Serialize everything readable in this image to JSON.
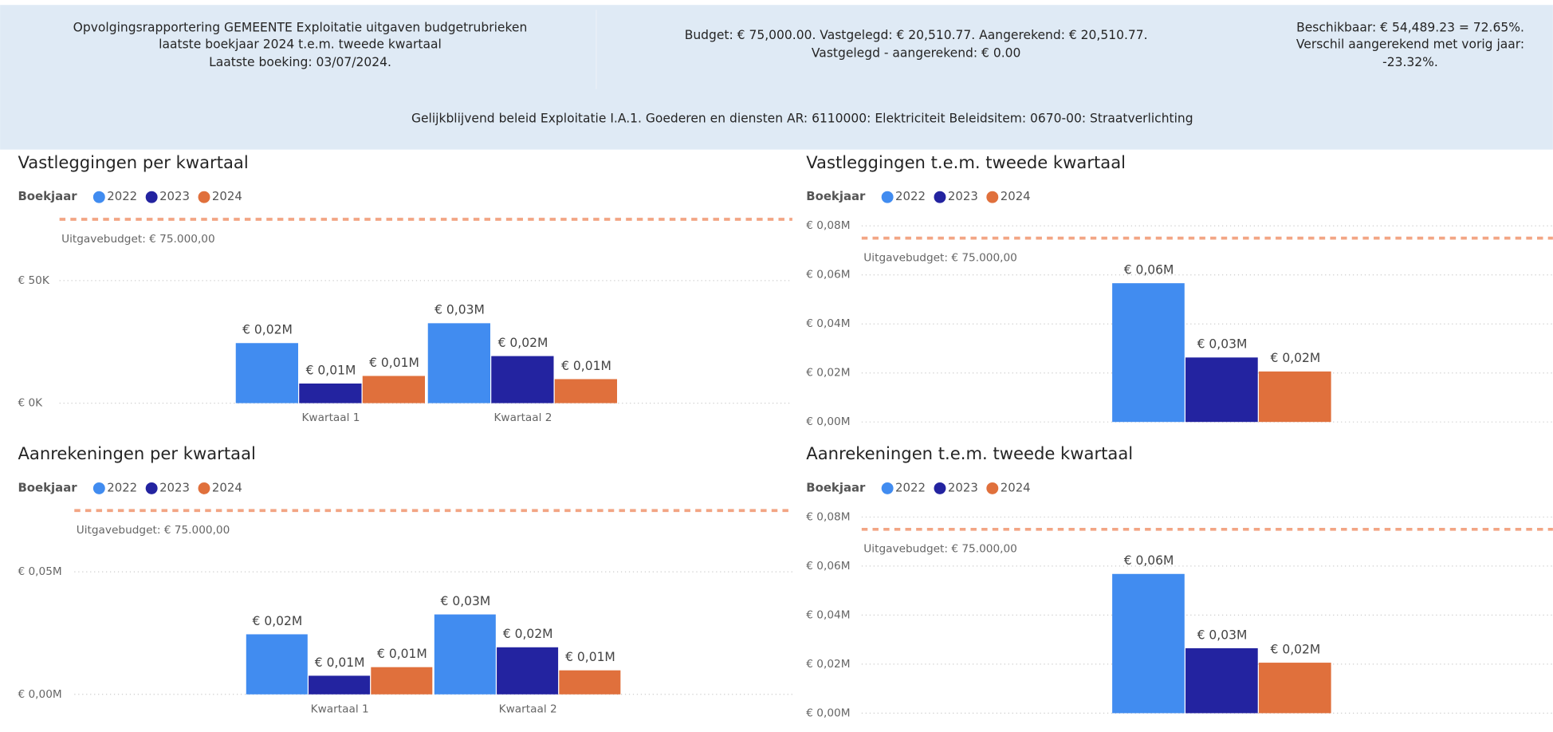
{
  "header": {
    "blocks": [
      [
        "Opvolgingsrapportering GEMEENTE Exploitatie uitgaven budgetrubrieken",
        "laatste boekjaar 2024 t.e.m. tweede kwartaal",
        "Laatste boeking: 03/07/2024."
      ],
      [
        "Budget: € 75,000.00. Vastgelegd: € 20,510.77. Aangerekend: € 20,510.77.",
        "Vastgelegd - aangerekend: € 0.00"
      ],
      [
        "Beschikbaar: € 54,489.23 = 72.65%.",
        "Verschil aangerekend met vorig jaar:",
        "-23.32%."
      ]
    ],
    "subtitle": "Gelijkblijvend beleid Exploitatie I.A.1. Goederen en diensten  AR: 6110000: Elektriciteit Beleidsitem: 0670-00: Straatverlichting"
  },
  "chart_data": [
    {
      "type": "bar",
      "title": "Vastleggingen per kwartaal",
      "legend_title": "Boekjaar",
      "categories": [
        "Kwartaal 1",
        "Kwartaal 2"
      ],
      "series": [
        {
          "name": "2022",
          "color": "#418cf0",
          "values": [
            24500,
            32600
          ],
          "value_labels": [
            "€ 0,02M",
            "€ 0,03M"
          ]
        },
        {
          "name": "2023",
          "color": "#2323a0",
          "values": [
            8000,
            19200
          ],
          "value_labels": [
            "€ 0,01M",
            "€ 0,02M"
          ]
        },
        {
          "name": "2024",
          "color": "#e0703c",
          "values": [
            11100,
            9800
          ],
          "value_labels": [
            "€ 0,01M",
            "€ 0,01M"
          ]
        }
      ],
      "ylim": [
        0,
        80000
      ],
      "yticks": [
        {
          "value": 0,
          "label": "€ 0K"
        },
        {
          "value": 50000,
          "label": "€ 50K"
        }
      ],
      "reference_line": {
        "value": 75000,
        "label": "Uitgavebudget: € 75.000,00"
      },
      "grid": true
    },
    {
      "type": "bar",
      "title": "Vastleggingen t.e.m. tweede kwartaal",
      "legend_title": "Boekjaar",
      "categories": [
        null
      ],
      "series": [
        {
          "name": "2022",
          "color": "#418cf0",
          "values": [
            56600
          ],
          "value_labels": [
            "€ 0,06M"
          ]
        },
        {
          "name": "2023",
          "color": "#2323a0",
          "values": [
            26300
          ],
          "value_labels": [
            "€ 0,03M"
          ]
        },
        {
          "name": "2024",
          "color": "#e0703c",
          "values": [
            20600
          ],
          "value_labels": [
            "€ 0,02M"
          ]
        }
      ],
      "ylim": [
        0,
        80000
      ],
      "yticks": [
        {
          "value": 0,
          "label": "€ 0,00M"
        },
        {
          "value": 20000,
          "label": "€ 0,02M"
        },
        {
          "value": 40000,
          "label": "€ 0,04M"
        },
        {
          "value": 60000,
          "label": "€ 0,06M"
        },
        {
          "value": 80000,
          "label": "€ 0,08M"
        }
      ],
      "reference_line": {
        "value": 75000,
        "label": "Uitgavebudget: € 75.000,00"
      },
      "grid": true
    },
    {
      "type": "bar",
      "title": "Aanrekeningen per kwartaal",
      "legend_title": "Boekjaar",
      "categories": [
        "Kwartaal 1",
        "Kwartaal 2"
      ],
      "series": [
        {
          "name": "2022",
          "color": "#418cf0",
          "values": [
            24500,
            32600
          ],
          "value_labels": [
            "€ 0,02M",
            "€ 0,03M"
          ]
        },
        {
          "name": "2023",
          "color": "#2323a0",
          "values": [
            7600,
            19200
          ],
          "value_labels": [
            "€ 0,01M",
            "€ 0,02M"
          ]
        },
        {
          "name": "2024",
          "color": "#e0703c",
          "values": [
            11100,
            9800
          ],
          "value_labels": [
            "€ 0,01M",
            "€ 0,01M"
          ]
        }
      ],
      "ylim": [
        0,
        80000
      ],
      "yticks": [
        {
          "value": 0,
          "label": "€ 0,00M"
        },
        {
          "value": 50000,
          "label": "€ 0,05M"
        }
      ],
      "reference_line": {
        "value": 75000,
        "label": "Uitgavebudget: € 75.000,00"
      },
      "grid": true
    },
    {
      "type": "bar",
      "title": "Aanrekeningen t.e.m. tweede kwartaal",
      "legend_title": "Boekjaar",
      "categories": [
        null
      ],
      "series": [
        {
          "name": "2022",
          "color": "#418cf0",
          "values": [
            56800
          ],
          "value_labels": [
            "€ 0,06M"
          ]
        },
        {
          "name": "2023",
          "color": "#2323a0",
          "values": [
            26500
          ],
          "value_labels": [
            "€ 0,03M"
          ]
        },
        {
          "name": "2024",
          "color": "#e0703c",
          "values": [
            20600
          ],
          "value_labels": [
            "€ 0,02M"
          ]
        }
      ],
      "ylim": [
        0,
        80000
      ],
      "yticks": [
        {
          "value": 0,
          "label": "€ 0,00M"
        },
        {
          "value": 20000,
          "label": "€ 0,02M"
        },
        {
          "value": 40000,
          "label": "€ 0,04M"
        },
        {
          "value": 60000,
          "label": "€ 0,06M"
        },
        {
          "value": 80000,
          "label": "€ 0,08M"
        }
      ],
      "reference_line": {
        "value": 75000,
        "label": "Uitgavebudget: € 75.000,00"
      },
      "grid": true
    }
  ]
}
